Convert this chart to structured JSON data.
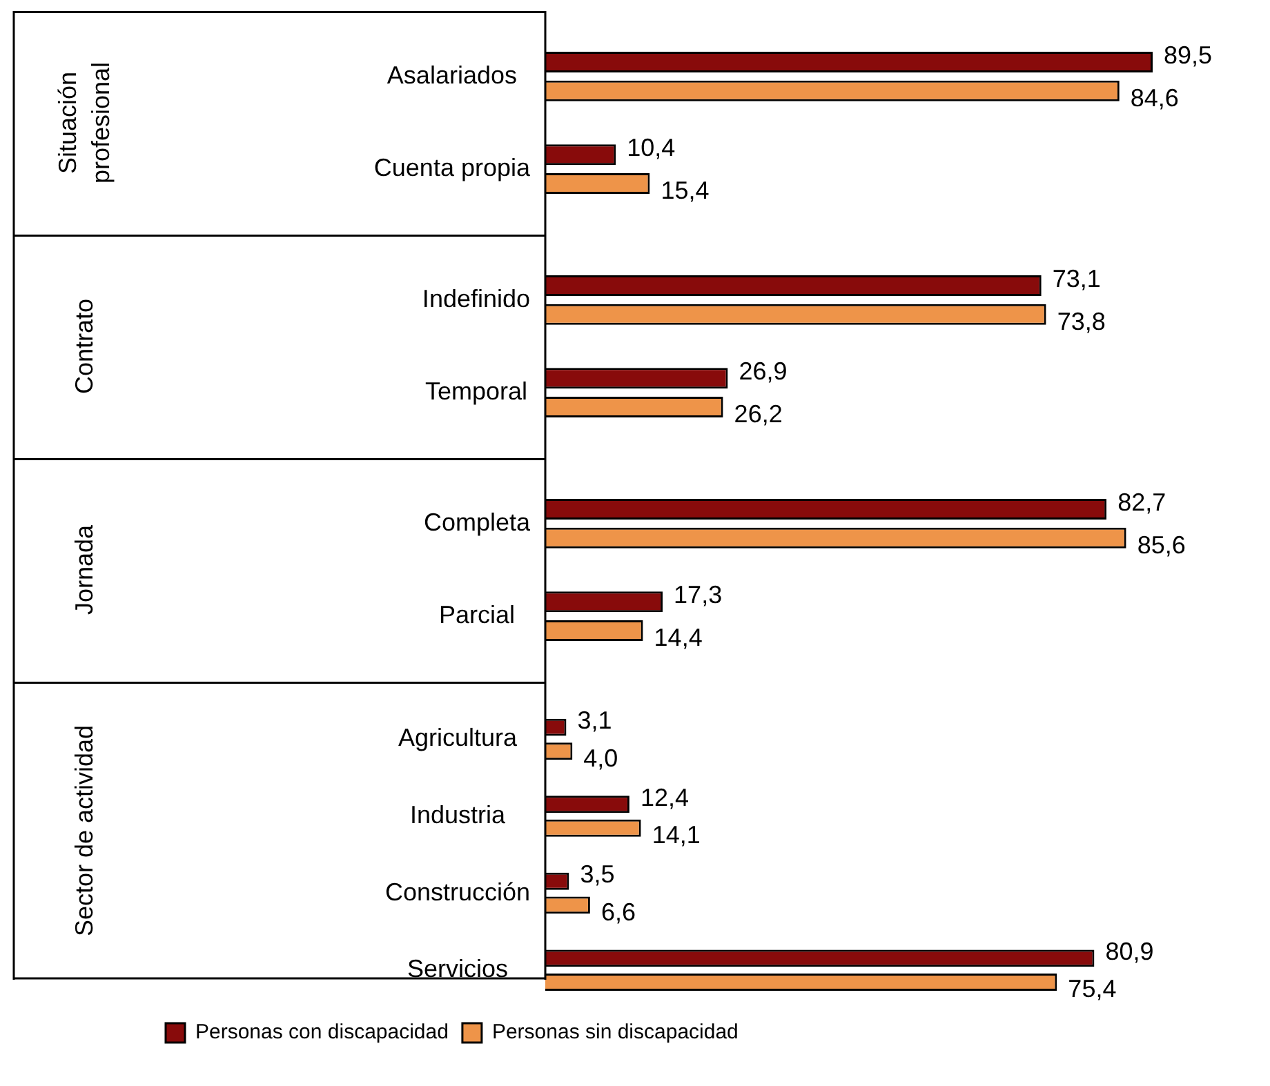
{
  "chart_data": [
    {
      "type": "bar",
      "orientation": "horizontal",
      "ylabel": "Situación profesional",
      "categories": [
        "Asalariados",
        "Cuenta propia"
      ],
      "tick_labels": "y",
      "series": [
        {
          "color": "#880b0b",
          "values": [
            89.5,
            10.4
          ],
          "value_labels": [
            "89,5",
            "10,4"
          ]
        },
        {
          "color": "#ee9449",
          "values": [
            84.6,
            15.4
          ],
          "value_labels": [
            "84,6",
            "15,4"
          ]
        }
      ]
    },
    {
      "type": "bar",
      "orientation": "horizontal",
      "ylabel": "Contrato",
      "categories": [
        "Indefinido",
        "Temporal"
      ],
      "tick_labels": "y",
      "series": [
        {
          "color": "#880b0b",
          "values": [
            73.1,
            26.9
          ],
          "value_labels": [
            "73,1",
            "26,9"
          ]
        },
        {
          "color": "#ee9449",
          "values": [
            73.8,
            26.2
          ],
          "value_labels": [
            "73,8",
            "26,2"
          ]
        }
      ]
    },
    {
      "type": "bar",
      "orientation": "horizontal",
      "ylabel": "Jornada",
      "categories": [
        "Completa",
        "Parcial"
      ],
      "tick_labels": "y",
      "series": [
        {
          "color": "#880b0b",
          "values": [
            82.7,
            17.3
          ],
          "value_labels": [
            "82,7",
            "17,3"
          ]
        },
        {
          "color": "#ee9449",
          "values": [
            85.6,
            14.4
          ],
          "value_labels": [
            "85,6",
            "14,4"
          ]
        }
      ]
    },
    {
      "type": "bar",
      "orientation": "horizontal",
      "ylabel": "Sector de actividad",
      "categories": [
        "Agricultura",
        "Industria",
        "Construcción",
        "Servicios"
      ],
      "tick_labels": "y",
      "legend": "bottom left",
      "series": [
        {
          "name": "Personas con discapacidad",
          "color": "#880b0b",
          "values": [
            3.1,
            12.4,
            3.5,
            80.9
          ],
          "value_labels": [
            "3,1",
            "12,4",
            "3,5",
            "80,9"
          ]
        },
        {
          "name": "Personas sin discapacidad",
          "color": "#ee9449",
          "values": [
            4.0,
            14.1,
            6.6,
            75.4
          ],
          "value_labels": [
            "4,0",
            "14,1",
            "6,6",
            "75,4"
          ]
        }
      ]
    }
  ]
}
